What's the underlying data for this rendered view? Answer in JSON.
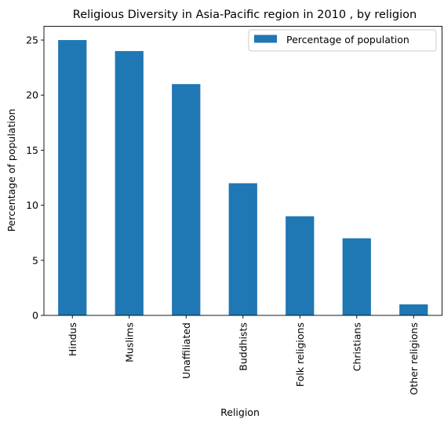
{
  "chart_data": {
    "type": "bar",
    "title": "Religious Diversity in Asia-Pacific region in 2010 , by religion",
    "xlabel": "Religion",
    "ylabel": "Percentage of population",
    "categories": [
      "Hindus",
      "Muslims",
      "Unaffiliated",
      "Buddhists",
      "Folk religions",
      "Christians",
      "Other religions"
    ],
    "series": [
      {
        "name": "Percentage of population",
        "values": [
          25,
          24,
          21,
          12,
          9,
          7,
          1
        ]
      }
    ],
    "ylim": [
      0,
      26.25
    ],
    "yticks": [
      0,
      5,
      10,
      15,
      20,
      25
    ],
    "grid": false,
    "legend_position": "top-right",
    "colors": {
      "bar": "#1f77b4"
    }
  }
}
